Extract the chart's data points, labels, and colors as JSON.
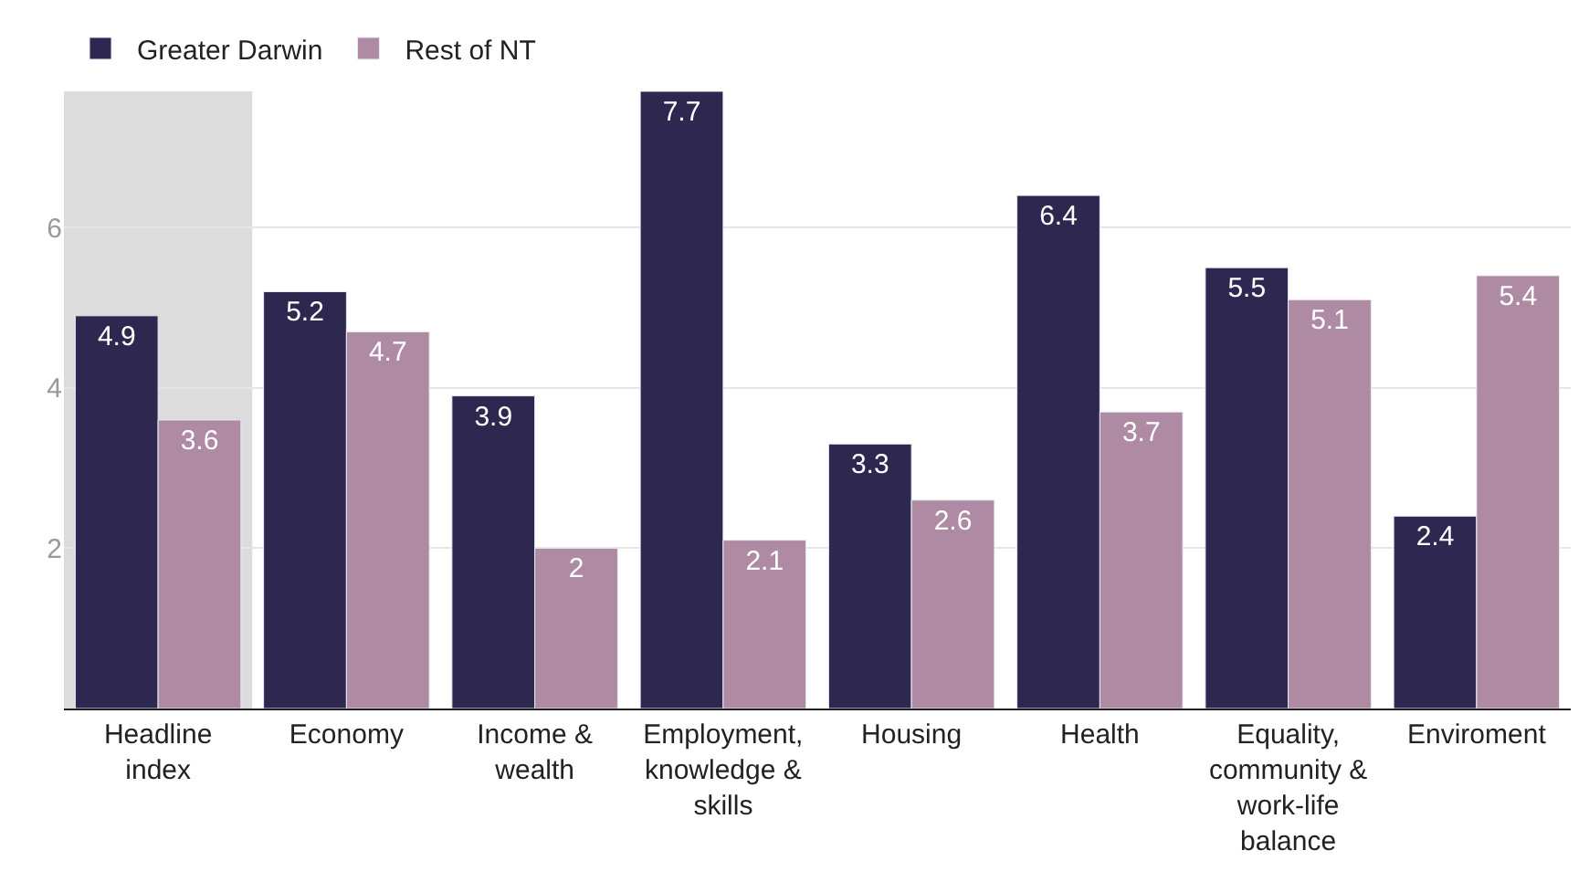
{
  "chart_data": {
    "type": "bar",
    "categories": [
      "Headline index",
      "Economy",
      "Income & wealth",
      "Employment, knowledge & skills",
      "Housing",
      "Health",
      "Equality, community & work-life balance",
      "Enviroment"
    ],
    "series": [
      {
        "name": "Greater Darwin",
        "color": "#2e2851",
        "values": [
          4.9,
          5.2,
          3.9,
          7.7,
          3.3,
          6.4,
          5.5,
          2.4
        ]
      },
      {
        "name": "Rest of NT",
        "color": "#ae8aa3",
        "values": [
          3.6,
          4.7,
          2,
          2.1,
          2.6,
          3.7,
          5.1,
          5.4
        ]
      }
    ],
    "ylim": [
      0,
      7.7
    ],
    "yticks": [
      2,
      4,
      6
    ],
    "grid": "y",
    "legend": "top left",
    "data_labels": true,
    "bands": [
      {
        "axis": "x",
        "from": "Headline index",
        "to": "Headline index",
        "color": "#dcdcdc"
      }
    ]
  }
}
